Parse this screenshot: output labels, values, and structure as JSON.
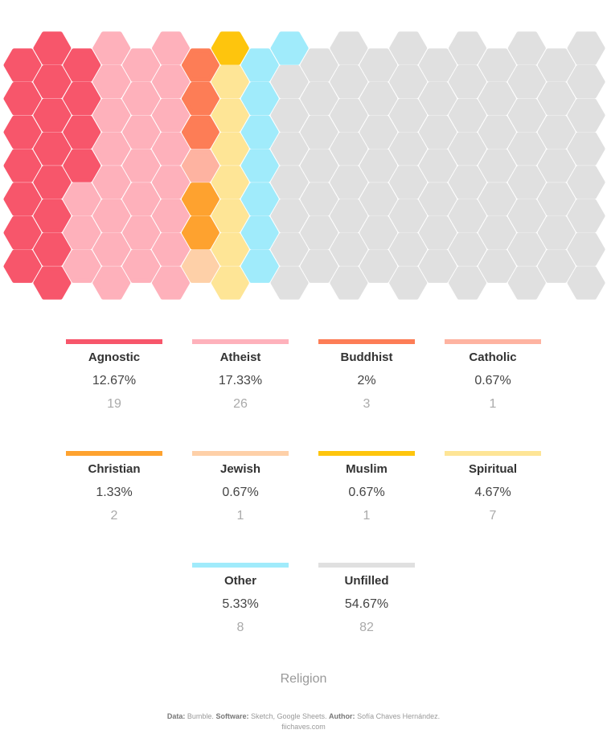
{
  "chart_data": {
    "type": "waffle",
    "title": "Religion",
    "total": 150,
    "categories": [
      {
        "name": "Agnostic",
        "percent": "12.67%",
        "count": 19,
        "color": "#f7566b"
      },
      {
        "name": "Atheist",
        "percent": "17.33%",
        "count": 26,
        "color": "#feb1bb"
      },
      {
        "name": "Buddhist",
        "percent": "2%",
        "count": 3,
        "color": "#fd7d56"
      },
      {
        "name": "Catholic",
        "percent": "0.67%",
        "count": 1,
        "color": "#feb3a1"
      },
      {
        "name": "Christian",
        "percent": "1.33%",
        "count": 2,
        "color": "#fea22f"
      },
      {
        "name": "Jewish",
        "percent": "0.67%",
        "count": 1,
        "color": "#fed0a8"
      },
      {
        "name": "Muslim",
        "percent": "0.67%",
        "count": 1,
        "color": "#fec50d"
      },
      {
        "name": "Spiritual",
        "percent": "4.67%",
        "count": 7,
        "color": "#fee596"
      },
      {
        "name": "Other",
        "percent": "5.33%",
        "count": 8,
        "color": "#a0ebfb"
      },
      {
        "name": "Unfilled",
        "percent": "54.67%",
        "count": 82,
        "color": "#e0e0e0"
      }
    ]
  },
  "credits": {
    "data_label": "Data:",
    "data_value": "Bumble.",
    "software_label": "Software:",
    "software_value": "Sketch, Google Sheets.",
    "author_label": "Author:",
    "author_value": "Sofía Chaves Hernández.",
    "site": "fiichaves.com"
  }
}
